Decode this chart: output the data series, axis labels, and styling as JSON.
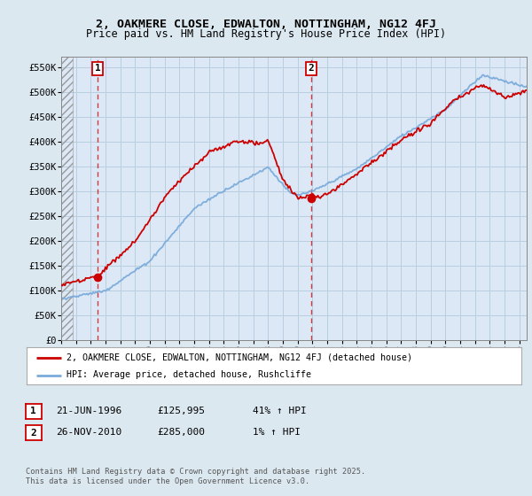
{
  "title": "2, OAKMERE CLOSE, EDWALTON, NOTTINGHAM, NG12 4FJ",
  "subtitle": "Price paid vs. HM Land Registry's House Price Index (HPI)",
  "ylim": [
    0,
    570000
  ],
  "yticks": [
    0,
    50000,
    100000,
    150000,
    200000,
    250000,
    300000,
    350000,
    400000,
    450000,
    500000,
    550000
  ],
  "ytick_labels": [
    "£0",
    "£50K",
    "£100K",
    "£150K",
    "£200K",
    "£250K",
    "£300K",
    "£350K",
    "£400K",
    "£450K",
    "£500K",
    "£550K"
  ],
  "background_color": "#dce8f0",
  "plot_bg_color": "#dce8f5",
  "grid_color": "#b8cfe0",
  "red_line_color": "#cc0000",
  "blue_line_color": "#7aabdc",
  "sale1_year": 1996.47,
  "sale1_price": 125995,
  "sale1_label": "1",
  "sale2_year": 2010.9,
  "sale2_price": 285000,
  "sale2_label": "2",
  "legend_label1": "2, OAKMERE CLOSE, EDWALTON, NOTTINGHAM, NG12 4FJ (detached house)",
  "legend_label2": "HPI: Average price, detached house, Rushcliffe",
  "table_row1": [
    "1",
    "21-JUN-1996",
    "£125,995",
    "41% ↑ HPI"
  ],
  "table_row2": [
    "2",
    "26-NOV-2010",
    "£285,000",
    "1% ↑ HPI"
  ],
  "footnote": "Contains HM Land Registry data © Crown copyright and database right 2025.\nThis data is licensed under the Open Government Licence v3.0.",
  "title_fontsize": 9.5,
  "subtitle_fontsize": 8.5
}
